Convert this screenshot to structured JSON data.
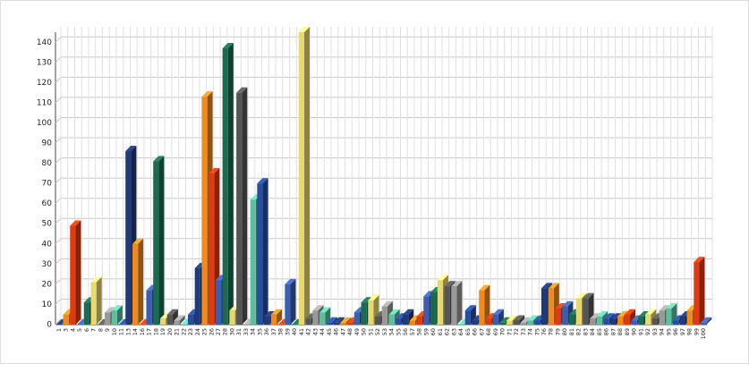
{
  "chart_data": {
    "type": "bar3d",
    "categories": [
      1,
      3,
      4,
      5,
      6,
      7,
      8,
      9,
      10,
      11,
      13,
      14,
      16,
      17,
      18,
      19,
      20,
      21,
      22,
      23,
      24,
      25,
      26,
      27,
      28,
      30,
      31,
      33,
      34,
      35,
      36,
      37,
      38,
      39,
      40,
      41,
      42,
      43,
      44,
      45,
      46,
      47,
      48,
      49,
      50,
      51,
      52,
      53,
      54,
      55,
      56,
      57,
      58,
      59,
      60,
      61,
      62,
      63,
      64,
      65,
      66,
      67,
      68,
      69,
      70,
      71,
      72,
      73,
      74,
      75,
      76,
      78,
      79,
      80,
      81,
      82,
      83,
      84,
      85,
      86,
      87,
      88,
      89,
      90,
      91,
      92,
      93,
      94,
      95,
      96,
      97,
      98,
      99,
      100
    ],
    "values": [
      0,
      5,
      49,
      0,
      11,
      21,
      0,
      6,
      7,
      0,
      86,
      40,
      0,
      17,
      81,
      3,
      5,
      2,
      0,
      5,
      28,
      113,
      75,
      22,
      137,
      7,
      115,
      0,
      62,
      70,
      4,
      5,
      0,
      20,
      0,
      145,
      3,
      7,
      6,
      1,
      1,
      1,
      1,
      6,
      11,
      12,
      4,
      9,
      5,
      3,
      5,
      2,
      4,
      14,
      16,
      22,
      19,
      19,
      0,
      7,
      2,
      17,
      3,
      5,
      1,
      2,
      2,
      1,
      2,
      2,
      18,
      18,
      8,
      9,
      5,
      13,
      13,
      3,
      4,
      3,
      3,
      4,
      5,
      2,
      4,
      5,
      3,
      7,
      8,
      2,
      4,
      7,
      31,
      1
    ],
    "palette": [
      "#1f3a78",
      "#f08a1c",
      "#e03a10",
      "#3a5fb0",
      "#1a6b50",
      "#e8d870",
      "#555555",
      "#999999",
      "#5cc0a0",
      "#264da0"
    ],
    "ylim": [
      0,
      145
    ],
    "yticks": [
      0,
      10,
      20,
      30,
      40,
      50,
      60,
      70,
      80,
      90,
      100,
      110,
      120,
      130,
      140
    ],
    "grid": true
  }
}
